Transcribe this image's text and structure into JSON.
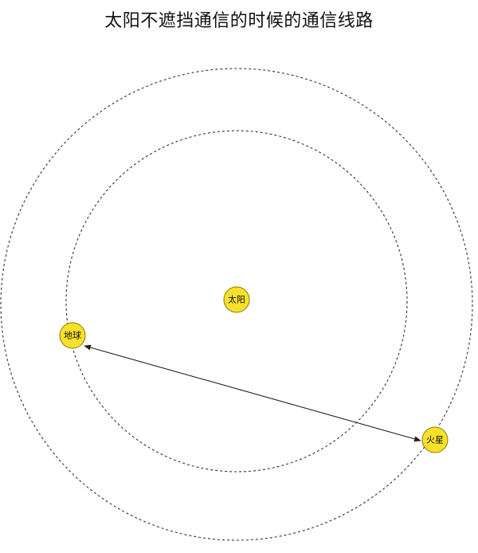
{
  "title": "太阳不遮挡通信的时候的通信线路",
  "bodies": {
    "sun": {
      "label": "太阳",
      "color": "#f7e12b"
    },
    "earth": {
      "label": "地球",
      "color": "#f7e12b"
    },
    "mars": {
      "label": "火星",
      "color": "#f7e12b"
    }
  },
  "orbits": [
    "earth-orbit",
    "mars-orbit"
  ],
  "link": {
    "from": "earth",
    "to": "mars",
    "bidirectional": true
  }
}
